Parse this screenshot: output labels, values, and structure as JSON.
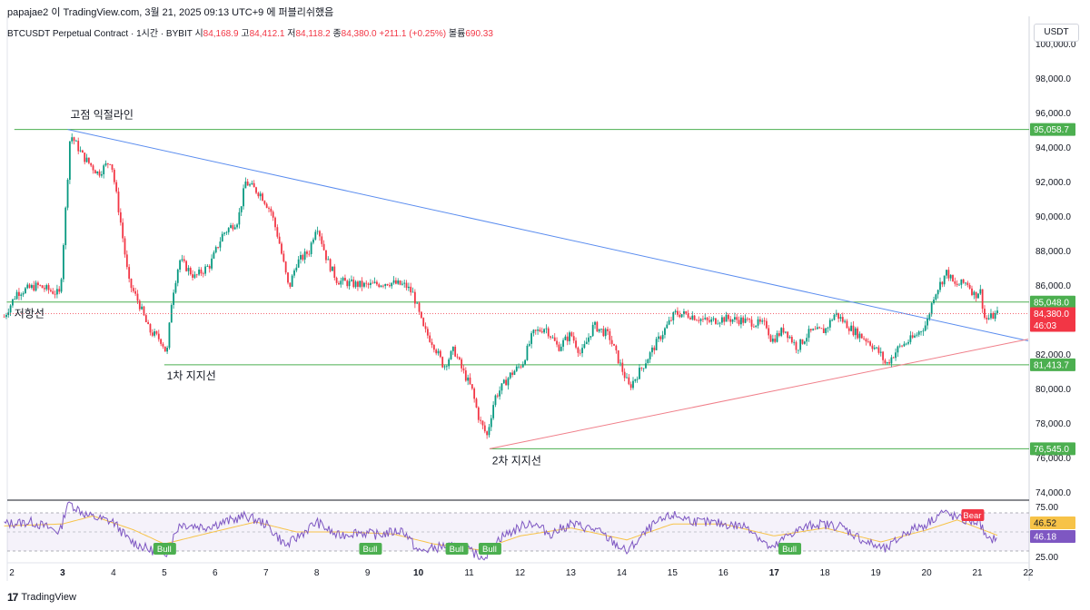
{
  "header": {
    "text": "papajae2 이 TradingView.com, 3월 21, 2025 09:13 UTC+9 에 퍼블리쉬했음"
  },
  "legend": {
    "symbol": "BTCUSDT Perpetual Contract · 1시간 · BYBIT",
    "open_label": "시",
    "open": "84,168.9",
    "high_label": "고",
    "high": "84,412.1",
    "low_label": "저",
    "low": "84,118.2",
    "close_label": "종",
    "close": "84,380.0",
    "change": "+211.1 (+0.25%)",
    "volume_label": "볼륨",
    "volume": "690.33"
  },
  "currency_button": "USDT",
  "footer": {
    "logo": "17",
    "brand": "TradingView"
  },
  "colors": {
    "up": "#089981",
    "down": "#f23645",
    "trend_blue": "#5b8def",
    "trend_red": "#f07f8a",
    "hline_green": "#4caf50",
    "rsi": "#7e57c2",
    "rsi_ma": "#f7c348",
    "bear": "#f23645",
    "bull": "#4caf50"
  },
  "chart_data": [
    {
      "type": "candlestick",
      "symbol": "BTCUSDT",
      "interval": "1h",
      "x_ticks": [
        "2",
        "3",
        "4",
        "5",
        "6",
        "7",
        "8",
        "9",
        "10",
        "11",
        "12",
        "13",
        "14",
        "15",
        "16",
        "17",
        "18",
        "19",
        "20",
        "21",
        "22"
      ],
      "y_ticks": [
        "100,000.0",
        "98,000.0",
        "96,000.0",
        "94,000.0",
        "92,000.0",
        "90,000.0",
        "88,000.0",
        "86,000.0",
        "84,000.0",
        "82,000.0",
        "80,000.0",
        "78,000.0",
        "76,000.0",
        "74,000.0"
      ],
      "ylim": [
        73500,
        101000
      ],
      "last_price": "84,380.0",
      "countdown": "46:03",
      "horizontal_lines": [
        {
          "value": "95,058.7"
        },
        {
          "value": "85,048.0"
        },
        {
          "value": "81,413.7"
        },
        {
          "value": "76,545.0"
        }
      ],
      "annotations": [
        {
          "text": "고점 익절라인"
        },
        {
          "text": "저항선"
        },
        {
          "text": "1차 지지선"
        },
        {
          "text": "2차 지지선"
        }
      ],
      "close_path": [
        {
          "x": 1.85,
          "y": 84200
        },
        {
          "x": 2.1,
          "y": 85600
        },
        {
          "x": 2.5,
          "y": 86000
        },
        {
          "x": 2.95,
          "y": 85500
        },
        {
          "x": 3.05,
          "y": 90000
        },
        {
          "x": 3.15,
          "y": 94800
        },
        {
          "x": 3.4,
          "y": 93500
        },
        {
          "x": 3.7,
          "y": 92500
        },
        {
          "x": 3.95,
          "y": 93300
        },
        {
          "x": 4.15,
          "y": 89500
        },
        {
          "x": 4.3,
          "y": 86200
        },
        {
          "x": 4.5,
          "y": 85000
        },
        {
          "x": 4.7,
          "y": 83400
        },
        {
          "x": 4.95,
          "y": 82800
        },
        {
          "x": 5.05,
          "y": 82000
        },
        {
          "x": 5.15,
          "y": 85300
        },
        {
          "x": 5.3,
          "y": 87500
        },
        {
          "x": 5.6,
          "y": 86500
        },
        {
          "x": 5.9,
          "y": 87200
        },
        {
          "x": 6.15,
          "y": 89000
        },
        {
          "x": 6.45,
          "y": 89800
        },
        {
          "x": 6.6,
          "y": 92000
        },
        {
          "x": 6.9,
          "y": 91300
        },
        {
          "x": 7.1,
          "y": 90300
        },
        {
          "x": 7.25,
          "y": 88700
        },
        {
          "x": 7.45,
          "y": 85800
        },
        {
          "x": 7.6,
          "y": 87300
        },
        {
          "x": 7.85,
          "y": 88000
        },
        {
          "x": 8.0,
          "y": 89600
        },
        {
          "x": 8.2,
          "y": 87500
        },
        {
          "x": 8.4,
          "y": 86300
        },
        {
          "x": 8.7,
          "y": 86100
        },
        {
          "x": 9.0,
          "y": 86000
        },
        {
          "x": 9.4,
          "y": 86200
        },
        {
          "x": 9.75,
          "y": 86000
        },
        {
          "x": 9.9,
          "y": 85500
        },
        {
          "x": 10.1,
          "y": 83500
        },
        {
          "x": 10.3,
          "y": 82600
        },
        {
          "x": 10.5,
          "y": 81300
        },
        {
          "x": 10.7,
          "y": 82300
        },
        {
          "x": 10.85,
          "y": 81200
        },
        {
          "x": 11.05,
          "y": 80000
        },
        {
          "x": 11.2,
          "y": 78200
        },
        {
          "x": 11.35,
          "y": 77300
        },
        {
          "x": 11.5,
          "y": 79500
        },
        {
          "x": 11.8,
          "y": 80800
        },
        {
          "x": 12.05,
          "y": 81500
        },
        {
          "x": 12.25,
          "y": 83200
        },
        {
          "x": 12.5,
          "y": 83600
        },
        {
          "x": 12.75,
          "y": 82400
        },
        {
          "x": 13.0,
          "y": 83200
        },
        {
          "x": 13.2,
          "y": 82000
        },
        {
          "x": 13.45,
          "y": 83700
        },
        {
          "x": 13.75,
          "y": 83100
        },
        {
          "x": 14.0,
          "y": 81200
        },
        {
          "x": 14.15,
          "y": 80100
        },
        {
          "x": 14.45,
          "y": 81500
        },
        {
          "x": 14.75,
          "y": 83000
        },
        {
          "x": 15.05,
          "y": 84400
        },
        {
          "x": 15.35,
          "y": 84300
        },
        {
          "x": 15.7,
          "y": 83900
        },
        {
          "x": 16.0,
          "y": 84100
        },
        {
          "x": 16.35,
          "y": 84000
        },
        {
          "x": 16.85,
          "y": 83700
        },
        {
          "x": 16.95,
          "y": 82800
        },
        {
          "x": 17.2,
          "y": 83500
        },
        {
          "x": 17.45,
          "y": 82400
        },
        {
          "x": 17.7,
          "y": 83300
        },
        {
          "x": 18.0,
          "y": 83400
        },
        {
          "x": 18.2,
          "y": 84400
        },
        {
          "x": 18.55,
          "y": 83400
        },
        {
          "x": 18.85,
          "y": 82800
        },
        {
          "x": 19.1,
          "y": 82000
        },
        {
          "x": 19.2,
          "y": 81400
        },
        {
          "x": 19.45,
          "y": 82400
        },
        {
          "x": 19.75,
          "y": 83000
        },
        {
          "x": 20.0,
          "y": 83800
        },
        {
          "x": 20.15,
          "y": 85500
        },
        {
          "x": 20.4,
          "y": 86800
        },
        {
          "x": 20.55,
          "y": 86000
        },
        {
          "x": 20.8,
          "y": 86200
        },
        {
          "x": 20.95,
          "y": 85400
        },
        {
          "x": 21.05,
          "y": 85800
        },
        {
          "x": 21.15,
          "y": 84000
        },
        {
          "x": 21.4,
          "y": 84380
        }
      ]
    },
    {
      "type": "line",
      "name": "RSI",
      "y_ticks": [
        "75.00",
        "25.00"
      ],
      "ylim": [
        20,
        80
      ],
      "rsi_value": "46.18",
      "ma_value": "46.52",
      "signals": [
        {
          "text": "Bull",
          "x": 5.0
        },
        {
          "text": "Bull",
          "x": 9.05
        },
        {
          "text": "Bull",
          "x": 10.75
        },
        {
          "text": "Bull",
          "x": 11.4
        },
        {
          "text": "Bull",
          "x": 17.3
        },
        {
          "text": "Bear",
          "x": 20.9
        }
      ],
      "rsi_path": [
        {
          "x": 1.85,
          "y": 58
        },
        {
          "x": 2.4,
          "y": 60
        },
        {
          "x": 2.95,
          "y": 50
        },
        {
          "x": 3.1,
          "y": 80
        },
        {
          "x": 3.5,
          "y": 66
        },
        {
          "x": 4.0,
          "y": 60
        },
        {
          "x": 4.3,
          "y": 42
        },
        {
          "x": 4.7,
          "y": 32
        },
        {
          "x": 5.05,
          "y": 30
        },
        {
          "x": 5.3,
          "y": 58
        },
        {
          "x": 5.8,
          "y": 55
        },
        {
          "x": 6.2,
          "y": 60
        },
        {
          "x": 6.6,
          "y": 66
        },
        {
          "x": 7.0,
          "y": 58
        },
        {
          "x": 7.4,
          "y": 36
        },
        {
          "x": 8.0,
          "y": 60
        },
        {
          "x": 8.4,
          "y": 46
        },
        {
          "x": 8.8,
          "y": 50
        },
        {
          "x": 9.2,
          "y": 47
        },
        {
          "x": 9.7,
          "y": 52
        },
        {
          "x": 10.0,
          "y": 30
        },
        {
          "x": 10.5,
          "y": 36
        },
        {
          "x": 10.9,
          "y": 33
        },
        {
          "x": 11.3,
          "y": 24
        },
        {
          "x": 11.6,
          "y": 44
        },
        {
          "x": 12.2,
          "y": 60
        },
        {
          "x": 12.6,
          "y": 48
        },
        {
          "x": 13.0,
          "y": 58
        },
        {
          "x": 13.5,
          "y": 52
        },
        {
          "x": 14.1,
          "y": 30
        },
        {
          "x": 14.6,
          "y": 56
        },
        {
          "x": 15.0,
          "y": 67
        },
        {
          "x": 15.5,
          "y": 60
        },
        {
          "x": 16.0,
          "y": 58
        },
        {
          "x": 16.5,
          "y": 55
        },
        {
          "x": 16.95,
          "y": 32
        },
        {
          "x": 17.3,
          "y": 48
        },
        {
          "x": 17.8,
          "y": 58
        },
        {
          "x": 18.3,
          "y": 56
        },
        {
          "x": 18.8,
          "y": 40
        },
        {
          "x": 19.2,
          "y": 32
        },
        {
          "x": 19.6,
          "y": 50
        },
        {
          "x": 20.0,
          "y": 58
        },
        {
          "x": 20.3,
          "y": 70
        },
        {
          "x": 20.7,
          "y": 62
        },
        {
          "x": 21.05,
          "y": 60
        },
        {
          "x": 21.2,
          "y": 40
        },
        {
          "x": 21.4,
          "y": 46.18
        }
      ],
      "ma_path": [
        {
          "x": 1.85,
          "y": 56
        },
        {
          "x": 3.0,
          "y": 58
        },
        {
          "x": 3.6,
          "y": 66
        },
        {
          "x": 4.4,
          "y": 52
        },
        {
          "x": 5.0,
          "y": 38
        },
        {
          "x": 5.8,
          "y": 48
        },
        {
          "x": 6.8,
          "y": 60
        },
        {
          "x": 7.6,
          "y": 50
        },
        {
          "x": 8.5,
          "y": 50
        },
        {
          "x": 9.5,
          "y": 48
        },
        {
          "x": 10.3,
          "y": 38
        },
        {
          "x": 11.2,
          "y": 32
        },
        {
          "x": 12.0,
          "y": 46
        },
        {
          "x": 13.0,
          "y": 54
        },
        {
          "x": 14.1,
          "y": 42
        },
        {
          "x": 15.0,
          "y": 58
        },
        {
          "x": 16.0,
          "y": 58
        },
        {
          "x": 17.0,
          "y": 46
        },
        {
          "x": 18.0,
          "y": 54
        },
        {
          "x": 19.1,
          "y": 40
        },
        {
          "x": 20.0,
          "y": 52
        },
        {
          "x": 20.6,
          "y": 62
        },
        {
          "x": 21.4,
          "y": 46.52
        }
      ]
    }
  ]
}
